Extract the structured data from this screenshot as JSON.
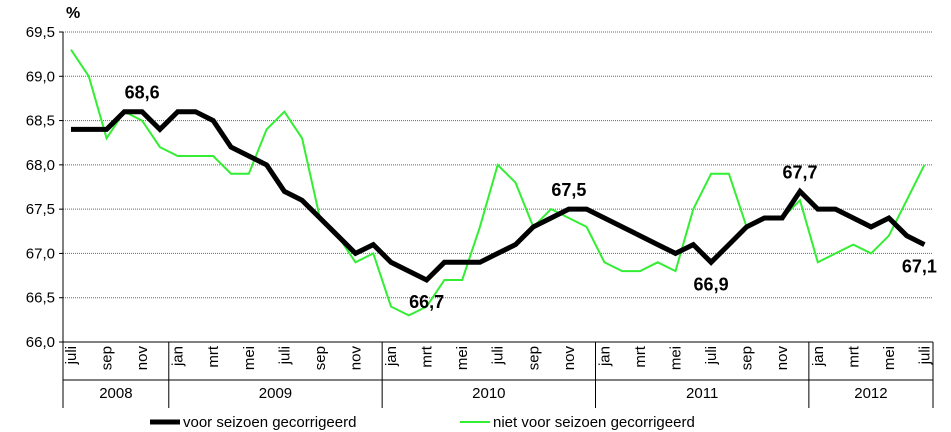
{
  "chart_data": {
    "type": "line",
    "y_axis_label": "%",
    "categories": [
      "juli",
      null,
      "sep",
      null,
      "nov",
      null,
      "jan",
      null,
      "mrt",
      null,
      "mei",
      null,
      "juli",
      null,
      "sep",
      null,
      "nov",
      null,
      "jan",
      null,
      "mrt",
      null,
      "mei",
      null,
      "juli",
      null,
      "sep",
      null,
      "nov",
      null,
      "jan",
      null,
      "mrt",
      null,
      "mei",
      null,
      "juli",
      null,
      "sep",
      null,
      "nov",
      null,
      "jan",
      null,
      "mrt",
      null,
      "mei",
      null,
      "juli"
    ],
    "year_groups": [
      "2008",
      "2009",
      "2010",
      "2011",
      "2012"
    ],
    "series": [
      {
        "name": "voor seizoen gecorrigeerd",
        "color": "#000000",
        "values": [
          68.4,
          68.4,
          68.4,
          68.6,
          68.6,
          68.4,
          68.6,
          68.6,
          68.5,
          68.2,
          68.1,
          68.0,
          67.7,
          67.6,
          67.4,
          67.2,
          67.0,
          67.1,
          66.9,
          66.8,
          66.7,
          66.9,
          66.9,
          66.9,
          67.0,
          67.1,
          67.3,
          67.4,
          67.5,
          67.5,
          67.4,
          67.3,
          67.2,
          67.1,
          67.0,
          67.1,
          66.9,
          67.1,
          67.3,
          67.4,
          67.4,
          67.7,
          67.5,
          67.5,
          67.4,
          67.3,
          67.4,
          67.2,
          67.1
        ],
        "value_labels": [
          null,
          null,
          null,
          null,
          "68,6",
          null,
          null,
          null,
          null,
          null,
          null,
          null,
          null,
          null,
          null,
          null,
          null,
          null,
          null,
          null,
          "66,7",
          null,
          null,
          null,
          null,
          null,
          null,
          null,
          "67,5",
          null,
          null,
          null,
          null,
          null,
          null,
          null,
          "66,9",
          null,
          null,
          null,
          null,
          "67,7",
          null,
          null,
          null,
          null,
          null,
          null,
          "67,1"
        ]
      },
      {
        "name": "niet voor seizoen gecorrigeerd",
        "color": "#33ee33",
        "values": [
          69.3,
          69.0,
          68.3,
          68.6,
          68.5,
          68.2,
          68.1,
          68.1,
          68.1,
          67.9,
          67.9,
          68.4,
          68.6,
          68.3,
          67.4,
          67.2,
          66.9,
          67.0,
          66.4,
          66.3,
          66.4,
          66.7,
          66.7,
          67.3,
          68.0,
          67.8,
          67.3,
          67.5,
          67.4,
          67.3,
          66.9,
          66.8,
          66.8,
          66.9,
          66.8,
          67.5,
          67.9,
          67.9,
          67.3,
          67.4,
          67.4,
          67.6,
          66.9,
          67.0,
          67.1,
          67.0,
          67.2,
          67.6,
          68.0
        ]
      }
    ],
    "ylim": [
      66.0,
      69.5
    ],
    "yticks": [
      {
        "value": 66.0,
        "label": "66,0"
      },
      {
        "value": 66.5,
        "label": "66,5"
      },
      {
        "value": 67.0,
        "label": "67,0"
      },
      {
        "value": 67.5,
        "label": "67,5"
      },
      {
        "value": 68.0,
        "label": "68,0"
      },
      {
        "value": 68.5,
        "label": "68,5"
      },
      {
        "value": 69.0,
        "label": "69,0"
      },
      {
        "value": 69.5,
        "label": "69,5"
      }
    ],
    "grid": true
  }
}
